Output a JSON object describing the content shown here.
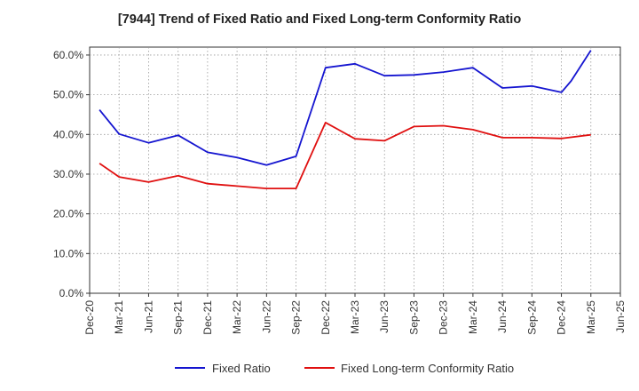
{
  "chart_data": {
    "type": "line",
    "title": "[7944]  Trend of Fixed Ratio and Fixed Long-term Conformity Ratio",
    "xlabel": "",
    "ylabel": "",
    "ylim": [
      0,
      62
    ],
    "y_ticks": [
      "0.0%",
      "10.0%",
      "20.0%",
      "30.0%",
      "40.0%",
      "50.0%",
      "60.0%"
    ],
    "y_tick_values": [
      0,
      10,
      20,
      30,
      40,
      50,
      60
    ],
    "x_ticks": [
      "Dec-20",
      "Mar-21",
      "Jun-21",
      "Sep-21",
      "Dec-21",
      "Mar-22",
      "Jun-22",
      "Sep-22",
      "Dec-22",
      "Mar-23",
      "Jun-23",
      "Sep-23",
      "Dec-23",
      "Mar-24",
      "Jun-24",
      "Sep-24",
      "Dec-24",
      "Mar-25",
      "Jun-25"
    ],
    "grid": true,
    "legend_position": "bottom",
    "series": [
      {
        "name": "Fixed Ratio",
        "color": "#1515d0",
        "x": [
          "Jan-21",
          "Mar-21",
          "Jun-21",
          "Sep-21",
          "Dec-21",
          "Mar-22",
          "Jun-22",
          "Sep-22",
          "Dec-22",
          "Mar-23",
          "Jun-23",
          "Sep-23",
          "Dec-23",
          "Mar-24",
          "Jun-24",
          "Sep-24",
          "Dec-24",
          "Jan-25",
          "Mar-25"
        ],
        "values": [
          46.2,
          40.1,
          37.9,
          39.8,
          35.5,
          34.2,
          32.3,
          34.5,
          56.8,
          57.8,
          54.8,
          55.0,
          55.7,
          56.8,
          51.7,
          52.2,
          50.6,
          53.5,
          61.2
        ]
      },
      {
        "name": "Fixed Long-term Conformity Ratio",
        "color": "#e01010",
        "x": [
          "Jan-21",
          "Mar-21",
          "Jun-21",
          "Sep-21",
          "Dec-21",
          "Mar-22",
          "Jun-22",
          "Sep-22",
          "Dec-22",
          "Mar-23",
          "Jun-23",
          "Sep-23",
          "Dec-23",
          "Mar-24",
          "Jun-24",
          "Sep-24",
          "Dec-24",
          "Mar-25"
        ],
        "values": [
          32.7,
          29.3,
          28.0,
          29.6,
          27.6,
          27.0,
          26.4,
          26.4,
          43.0,
          38.9,
          38.4,
          42.0,
          42.2,
          41.2,
          39.2,
          39.2,
          39.0,
          39.9
        ]
      }
    ]
  }
}
